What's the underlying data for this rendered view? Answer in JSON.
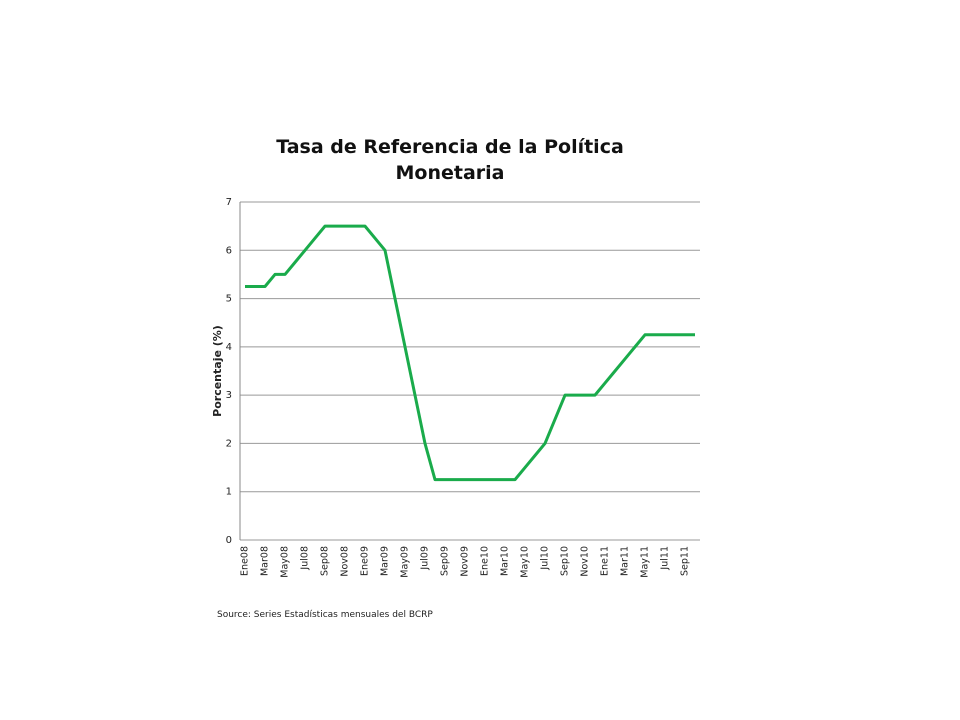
{
  "chart_data": {
    "type": "line",
    "title": "Tasa de Referencia de la Política Monetaria",
    "y_label": "Porcentaje (%)",
    "source": "Source: Series Estadísticas mensuales del BCRP",
    "categories": [
      "Ene08",
      null,
      "Mar08",
      null,
      "May08",
      null,
      "Jul08",
      null,
      "Sep08",
      null,
      "Nov08",
      null,
      "Ene09",
      null,
      "Mar09",
      null,
      "May09",
      null,
      "Jul09",
      null,
      "Sep09",
      null,
      "Nov09",
      null,
      "Ene10",
      null,
      "Mar10",
      null,
      "May10",
      null,
      "Jul10",
      null,
      "Sep10",
      null,
      "Nov10",
      null,
      "Ene11",
      null,
      "Mar11",
      null,
      "May11",
      null,
      "Jul11",
      null,
      "Sep11",
      null
    ],
    "series": [
      {
        "name": "Tasa de Referencia",
        "color": "#1aab4b",
        "values": [
          5.25,
          5.25,
          5.25,
          5.5,
          5.5,
          5.75,
          6.0,
          6.25,
          6.5,
          6.5,
          6.5,
          6.5,
          6.5,
          6.25,
          6.0,
          5.0,
          4.0,
          3.0,
          2.0,
          1.25,
          1.25,
          1.25,
          1.25,
          1.25,
          1.25,
          1.25,
          1.25,
          1.25,
          1.5,
          1.75,
          2.0,
          2.5,
          3.0,
          3.0,
          3.0,
          3.0,
          3.25,
          3.5,
          3.75,
          4.0,
          4.25,
          4.25,
          4.25,
          4.25,
          4.25,
          4.25
        ]
      }
    ],
    "ylim": [
      0,
      7
    ],
    "yticks": [
      0,
      1,
      2,
      3,
      4,
      5,
      6,
      7
    ],
    "grid": true
  }
}
